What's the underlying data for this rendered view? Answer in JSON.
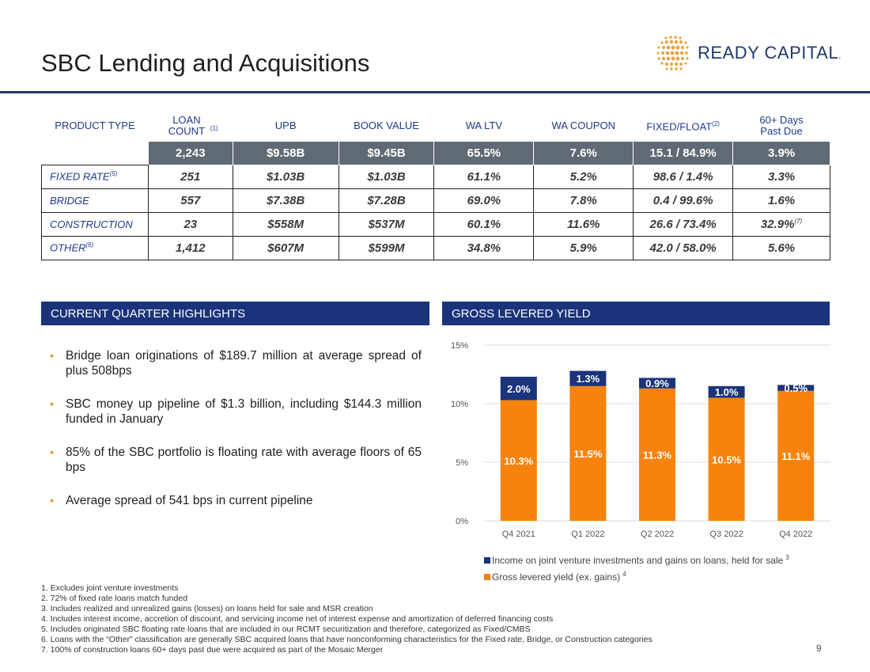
{
  "title": "SBC Lending and Acquisitions",
  "logo": {
    "text": "READY CAPITAL",
    "mark": "."
  },
  "table": {
    "headers": [
      "PRODUCT TYPE",
      "LOAN COUNT",
      "UPB",
      "BOOK VALUE",
      "WA LTV",
      "WA COUPON",
      "FIXED/FLOAT",
      "60+ Days Past Due"
    ],
    "header_notes": {
      "loan_count": "(1)",
      "fixed_float": "(2)"
    },
    "summary": [
      "2,243",
      "$9.58B",
      "$9.45B",
      "65.5%",
      "7.6%",
      "15.1 / 84.9%",
      "3.9%"
    ],
    "rows": [
      {
        "label": "FIXED RATE",
        "note": "(5)",
        "cells": [
          "251",
          "$1.03B",
          "$1.03B",
          "61.1%",
          "5.2%",
          "98.6 / 1.4%",
          "3.3%"
        ],
        "last_note": ""
      },
      {
        "label": "BRIDGE",
        "note": "",
        "cells": [
          "557",
          "$7.38B",
          "$7.28B",
          "69.0%",
          "7.8%",
          "0.4 / 99.6%",
          "1.6%"
        ],
        "last_note": ""
      },
      {
        "label": "CONSTRUCTION",
        "note": "",
        "cells": [
          "23",
          "$558M",
          "$537M",
          "60.1%",
          "11.6%",
          "26.6 / 73.4%",
          "32.9%"
        ],
        "last_note": "(7)"
      },
      {
        "label": "OTHER",
        "note": "(6)",
        "cells": [
          "1,412",
          "$607M",
          "$599M",
          "34.8%",
          "5.9%",
          "42.0 / 58.0%",
          "5.6%"
        ],
        "last_note": ""
      }
    ]
  },
  "highlights": {
    "heading": "CURRENT QUARTER HIGHLIGHTS",
    "items": [
      "Bridge loan originations of $189.7 million at average spread of plus 508bps",
      "SBC money up pipeline of $1.3 billion, including $144.3 million funded in January",
      "85% of the SBC portfolio is floating rate with average floors of 65 bps",
      "Average spread of 541 bps in current pipeline"
    ]
  },
  "chart_heading": "GROSS LEVERED YIELD",
  "chart_data": {
    "type": "bar",
    "stacked": true,
    "title": "GROSS LEVERED YIELD",
    "categories": [
      "Q4 2021",
      "Q1 2022",
      "Q2 2022",
      "Q3 2022",
      "Q4 2022"
    ],
    "series": [
      {
        "name": "Gross levered yield (ex. gains)",
        "note": "4",
        "color": "#f7830e",
        "values": [
          10.3,
          11.5,
          11.3,
          10.5,
          11.1
        ],
        "labels": [
          "10.3%",
          "11.5%",
          "11.3%",
          "10.5%",
          "11.1%"
        ]
      },
      {
        "name": "Income on joint venture investments and gains on loans, held for sale",
        "note": "3",
        "color": "#1a337a",
        "values": [
          2.0,
          1.3,
          0.9,
          1.0,
          0.5
        ],
        "labels": [
          "2.0%",
          "1.3%",
          "0.9%",
          "1.0%",
          "0.5%"
        ]
      }
    ],
    "yticks": [
      "0%",
      "5%",
      "10%",
      "15%"
    ],
    "ylim": [
      0,
      15
    ],
    "grid": true,
    "legend": "bottom"
  },
  "footnotes": [
    "1. Excludes joint venture investments",
    "2. 72% of fixed rate loans match funded",
    "3. Includes realized and unrealized gains (losses) on loans held for sale and MSR creation",
    "4. Includes interest income, accretion of discount, and servicing income net of interest expense and amortization of deferred financing costs",
    "5. Includes originated SBC floating rate loans that are included in our RCMT securitization and therefore, categorized as Fixed/CMBS",
    "6. Loans with the “Other” classification are generally SBC acquired loans that have nonconforming characteristics for the Fixed rate, Bridge, or Construction categories",
    "7. 100% of construction loans 60+ days past due were acquired as part of the Mosaic Merger"
  ],
  "page_number": "9"
}
